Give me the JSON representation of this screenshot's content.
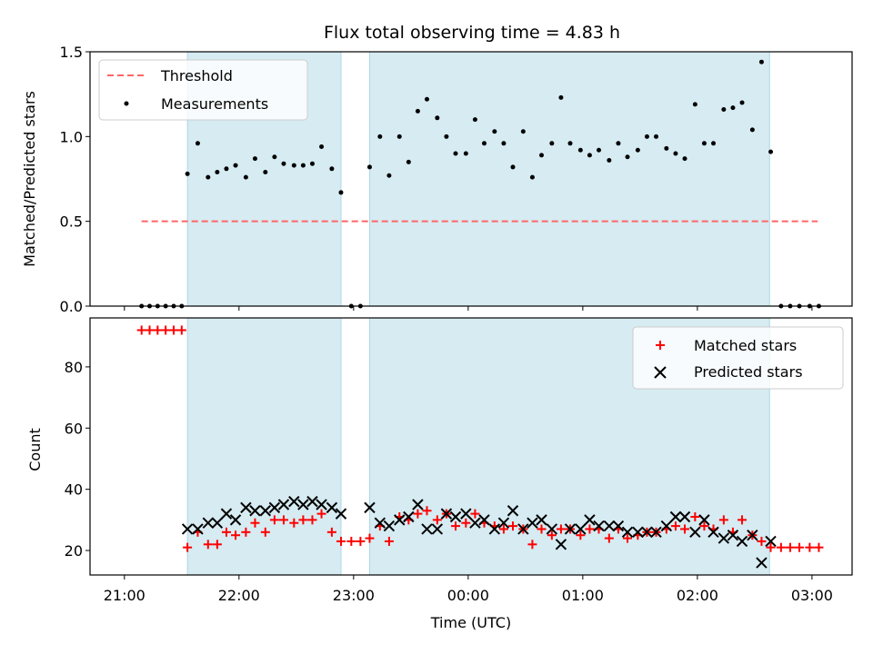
{
  "chart_data": [
    {
      "type": "scatter",
      "title": "Flux total observing time = 4.83 h",
      "xlabel": "",
      "ylabel": "Matched/Predicted stars",
      "ylim": [
        0,
        1.5
      ],
      "yticks": [
        "0.0",
        "0.5",
        "1.0",
        "1.5"
      ],
      "xlim": [
        -0.3,
        6.35
      ],
      "x_unit": "hours since 21:00 UTC",
      "grid": false,
      "legend_position": "upper-left",
      "shaded_spans": [
        [
          0.55,
          1.89
        ],
        [
          2.14,
          5.63
        ]
      ],
      "threshold": {
        "name": "Threshold",
        "value": 0.5,
        "x_range": [
          0.15,
          6.05
        ],
        "color": "#ff6666"
      },
      "series": [
        {
          "name": "Measurements",
          "color": "#000000",
          "x": [
            0.15,
            0.22,
            0.29,
            0.36,
            0.43,
            0.5,
            0.55,
            0.64,
            0.73,
            0.81,
            0.89,
            0.97,
            1.06,
            1.14,
            1.23,
            1.31,
            1.39,
            1.48,
            1.56,
            1.64,
            1.72,
            1.81,
            1.89,
            1.98,
            2.06,
            2.14,
            2.23,
            2.31,
            2.4,
            2.48,
            2.56,
            2.64,
            2.73,
            2.81,
            2.89,
            2.98,
            3.06,
            3.14,
            3.23,
            3.31,
            3.39,
            3.48,
            3.56,
            3.64,
            3.73,
            3.81,
            3.89,
            3.98,
            4.06,
            4.14,
            4.23,
            4.31,
            4.39,
            4.48,
            4.56,
            4.64,
            4.73,
            4.81,
            4.89,
            4.98,
            5.06,
            5.14,
            5.23,
            5.31,
            5.39,
            5.48,
            5.56,
            5.64,
            5.73,
            5.81,
            5.89,
            5.98,
            6.06
          ],
          "y": [
            0,
            0,
            0,
            0,
            0,
            0,
            0.78,
            0.96,
            0.76,
            0.79,
            0.81,
            0.83,
            0.76,
            0.87,
            0.79,
            0.88,
            0.84,
            0.83,
            0.83,
            0.84,
            0.94,
            0.81,
            0.67,
            0,
            0,
            0.82,
            1.0,
            0.77,
            1.0,
            0.85,
            1.15,
            1.22,
            1.11,
            1.0,
            0.9,
            0.9,
            1.1,
            0.96,
            1.03,
            0.96,
            0.82,
            1.03,
            0.76,
            0.89,
            0.96,
            1.23,
            0.96,
            0.92,
            0.89,
            0.92,
            0.86,
            0.96,
            0.88,
            0.92,
            1.0,
            1.0,
            0.93,
            0.9,
            0.87,
            1.19,
            0.96,
            0.96,
            1.16,
            1.17,
            1.2,
            1.04,
            1.44,
            0.91,
            0,
            0,
            0,
            0,
            0
          ]
        }
      ]
    },
    {
      "type": "scatter",
      "title": "",
      "xlabel": "Time (UTC)",
      "ylabel": "Count",
      "ylim": [
        12,
        96
      ],
      "yticks": [
        "20",
        "40",
        "60",
        "80"
      ],
      "xlim": [
        -0.3,
        6.35
      ],
      "x_unit": "hours since 21:00 UTC",
      "xticks": [
        "21:00",
        "22:00",
        "23:00",
        "00:00",
        "01:00",
        "02:00",
        "03:00"
      ],
      "grid": false,
      "legend_position": "upper-right",
      "shaded_spans": [
        [
          0.55,
          1.89
        ],
        [
          2.14,
          5.63
        ]
      ],
      "series": [
        {
          "name": "Matched stars",
          "marker": "plus",
          "color": "#ff0000",
          "x": [
            0.15,
            0.22,
            0.29,
            0.36,
            0.43,
            0.5,
            0.55,
            0.64,
            0.73,
            0.81,
            0.89,
            0.97,
            1.06,
            1.14,
            1.23,
            1.31,
            1.39,
            1.48,
            1.56,
            1.64,
            1.72,
            1.81,
            1.89,
            1.98,
            2.06,
            2.14,
            2.23,
            2.31,
            2.4,
            2.48,
            2.56,
            2.64,
            2.73,
            2.81,
            2.89,
            2.98,
            3.06,
            3.14,
            3.23,
            3.31,
            3.39,
            3.48,
            3.56,
            3.64,
            3.73,
            3.81,
            3.89,
            3.98,
            4.06,
            4.14,
            4.23,
            4.31,
            4.39,
            4.48,
            4.56,
            4.64,
            4.73,
            4.81,
            4.89,
            4.98,
            5.06,
            5.14,
            5.23,
            5.31,
            5.39,
            5.48,
            5.56,
            5.64,
            5.73,
            5.81,
            5.89,
            5.98,
            6.06
          ],
          "y": [
            92,
            92,
            92,
            92,
            92,
            92,
            21,
            26,
            22,
            22,
            26,
            25,
            26,
            29,
            26,
            30,
            30,
            29,
            30,
            30,
            32,
            26,
            23,
            23,
            23,
            24,
            28,
            23,
            31,
            30,
            32,
            33,
            30,
            32,
            28,
            29,
            32,
            29,
            28,
            27,
            28,
            27,
            22,
            27,
            25,
            27,
            27,
            25,
            27,
            27,
            24,
            27,
            24,
            25,
            26,
            26,
            27,
            28,
            27,
            31,
            28,
            27,
            30,
            26,
            30,
            25,
            23,
            21,
            21,
            21,
            21,
            21,
            21
          ]
        },
        {
          "name": "Predicted stars",
          "marker": "x",
          "color": "#000000",
          "x": [
            0.55,
            0.64,
            0.73,
            0.81,
            0.89,
            0.97,
            1.06,
            1.14,
            1.23,
            1.31,
            1.39,
            1.48,
            1.56,
            1.64,
            1.72,
            1.81,
            1.89,
            2.14,
            2.23,
            2.31,
            2.4,
            2.48,
            2.56,
            2.64,
            2.73,
            2.81,
            2.89,
            2.98,
            3.06,
            3.14,
            3.23,
            3.31,
            3.39,
            3.48,
            3.56,
            3.64,
            3.73,
            3.81,
            3.89,
            3.98,
            4.06,
            4.14,
            4.23,
            4.31,
            4.39,
            4.48,
            4.56,
            4.64,
            4.73,
            4.81,
            4.89,
            4.98,
            5.06,
            5.14,
            5.23,
            5.31,
            5.39,
            5.48,
            5.56,
            5.64
          ],
          "y": [
            27,
            27,
            29,
            29,
            32,
            30,
            34,
            33,
            33,
            34,
            35,
            36,
            35,
            36,
            35,
            34,
            32,
            34,
            29,
            28,
            30,
            31,
            35,
            27,
            27,
            32,
            31,
            32,
            29,
            30,
            27,
            29,
            33,
            27,
            29,
            30,
            27,
            22,
            27,
            27,
            30,
            28,
            28,
            28,
            26,
            26,
            26,
            26,
            28,
            31,
            31,
            26,
            30,
            26,
            24,
            25,
            23,
            25,
            16,
            23
          ]
        }
      ]
    }
  ]
}
